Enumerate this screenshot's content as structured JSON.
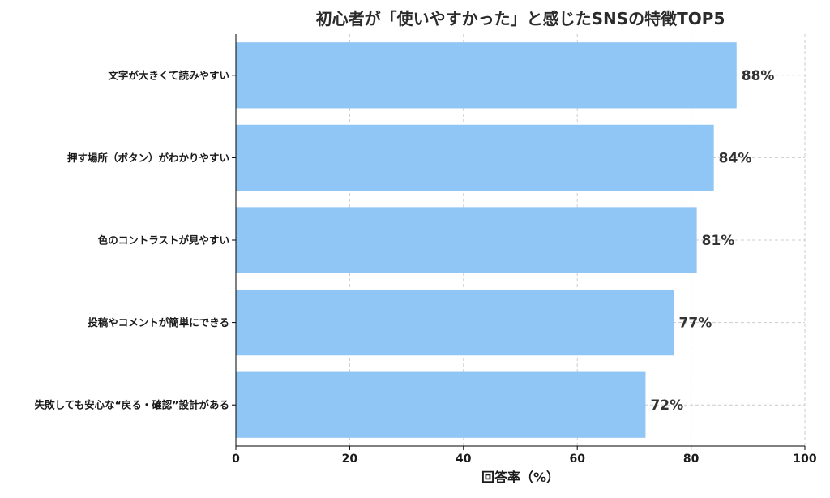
{
  "chart_data": {
    "type": "bar",
    "orientation": "horizontal",
    "title": "初心者が「使いやすかった」と感じたSNSの特徴TOP5",
    "xlabel": "回答率（%）",
    "ylabel": "",
    "categories": [
      "文字が大きくて読みやすい",
      "押す場所（ボタン）がわかりやすい",
      "色のコントラストが見やすい",
      "投稿やコメントが簡単にできる",
      "失敗しても安心な“戻る・確認”設計がある"
    ],
    "values": [
      88,
      84,
      81,
      77,
      72
    ],
    "value_labels": [
      "88%",
      "84%",
      "81%",
      "77%",
      "72%"
    ],
    "xlim": [
      0,
      100
    ],
    "xticks": [
      0,
      20,
      40,
      60,
      80,
      100
    ],
    "xtick_labels": [
      "0",
      "20",
      "40",
      "60",
      "80",
      "100"
    ],
    "grid": true,
    "legend": "none",
    "bar_color": "#90c6f5"
  }
}
